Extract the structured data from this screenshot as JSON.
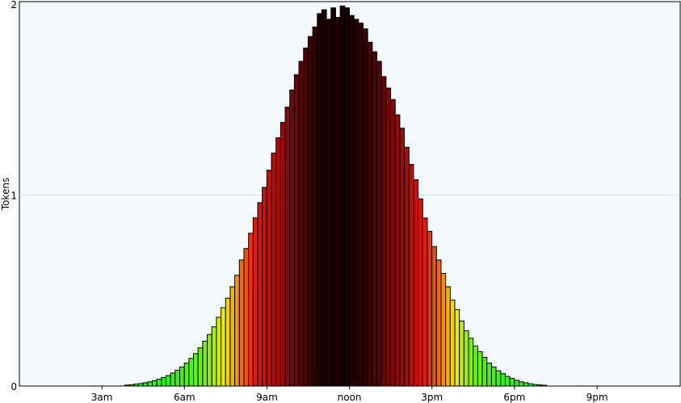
{
  "chart_data": {
    "type": "bar",
    "title": "",
    "xlabel": "",
    "ylabel": "Tokens",
    "ylim": [
      0,
      2
    ],
    "xlim_hours": [
      0,
      24
    ],
    "grid": {
      "y": true,
      "x": false
    },
    "y_ticks": [
      {
        "value": 0,
        "label": "0"
      },
      {
        "value": 1,
        "label": "1"
      },
      {
        "value": 2,
        "label": "2"
      }
    ],
    "x_ticks": [
      {
        "hour": 3,
        "label": "3am"
      },
      {
        "hour": 6,
        "label": "6am"
      },
      {
        "hour": 9,
        "label": "9am"
      },
      {
        "hour": 12,
        "label": "noon"
      },
      {
        "hour": 15,
        "label": "3pm"
      },
      {
        "hour": 18,
        "label": "6pm"
      },
      {
        "hour": 21,
        "label": "9pm"
      }
    ],
    "bin_minutes": 10,
    "first_bin_hour": 3.83,
    "values": [
      0.005,
      0.007,
      0.01,
      0.013,
      0.017,
      0.022,
      0.028,
      0.036,
      0.045,
      0.055,
      0.068,
      0.083,
      0.1,
      0.12,
      0.145,
      0.17,
      0.2,
      0.235,
      0.27,
      0.31,
      0.36,
      0.41,
      0.46,
      0.52,
      0.58,
      0.66,
      0.72,
      0.8,
      0.88,
      0.96,
      1.04,
      1.13,
      1.22,
      1.3,
      1.38,
      1.46,
      1.55,
      1.63,
      1.7,
      1.77,
      1.83,
      1.88,
      1.95,
      1.97,
      1.92,
      1.98,
      1.93,
      1.99,
      1.98,
      1.94,
      1.92,
      1.9,
      1.87,
      1.8,
      1.75,
      1.7,
      1.62,
      1.56,
      1.5,
      1.42,
      1.35,
      1.25,
      1.16,
      1.08,
      0.98,
      0.88,
      0.81,
      0.73,
      0.66,
      0.59,
      0.52,
      0.45,
      0.4,
      0.34,
      0.29,
      0.25,
      0.21,
      0.18,
      0.15,
      0.12,
      0.1,
      0.08,
      0.065,
      0.05,
      0.04,
      0.03,
      0.022,
      0.017,
      0.012,
      0.008,
      0.006,
      0.004
    ]
  }
}
